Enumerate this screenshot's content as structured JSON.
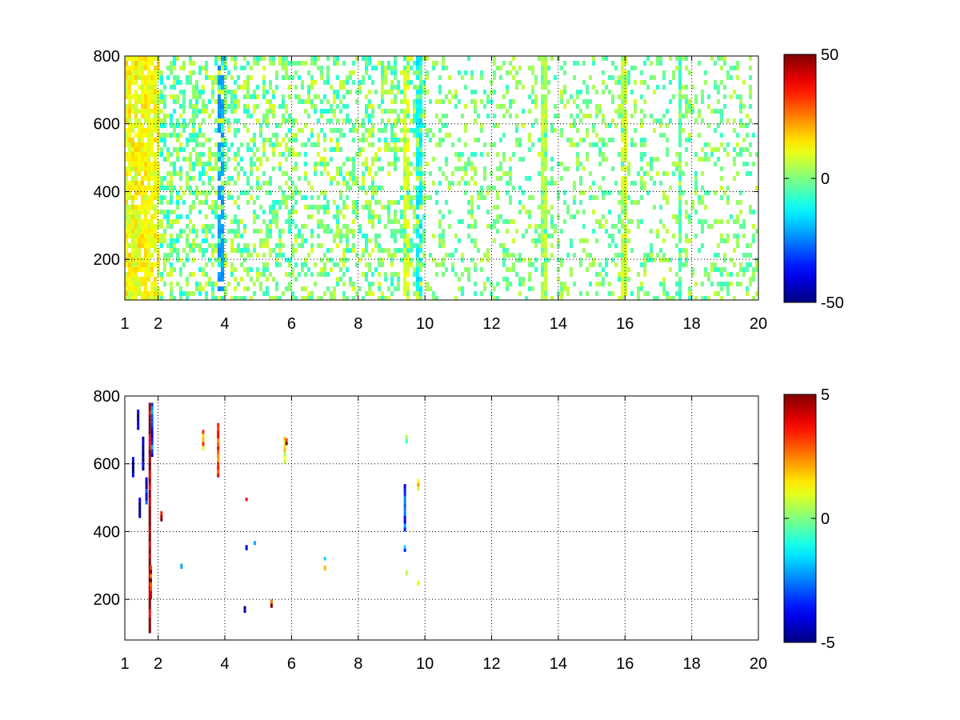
{
  "figure": {
    "background": "#ffffff",
    "colormap": "jet"
  },
  "chart_data": [
    {
      "type": "heatmap",
      "title": "",
      "xlabel": "",
      "ylabel": "",
      "xlim": [
        1,
        20
      ],
      "ylim": [
        80,
        800
      ],
      "xticks": [
        1,
        2,
        4,
        6,
        8,
        10,
        12,
        14,
        16,
        18,
        20
      ],
      "yticks": [
        200,
        400,
        600,
        800
      ],
      "grid": true,
      "colorbar": {
        "range": [
          -50,
          50
        ],
        "ticks": [
          50,
          0,
          -50
        ],
        "tick_labels": [
          "50",
          "0",
          "-50"
        ]
      },
      "cell_density_profile": [
        {
          "x_range": [
            1.0,
            2.0
          ],
          "density": 0.85,
          "value_range": [
            5,
            18
          ]
        },
        {
          "x_range": [
            2.0,
            4.0
          ],
          "density": 0.45,
          "value_range": [
            -12,
            10
          ]
        },
        {
          "x_range": [
            4.0,
            10.0
          ],
          "density": 0.35,
          "value_range": [
            -10,
            10
          ]
        },
        {
          "x_range": [
            10.0,
            20.0
          ],
          "density": 0.22,
          "value_range": [
            -8,
            8
          ]
        }
      ],
      "bright_columns": [
        {
          "x": 1.55,
          "value": 14
        },
        {
          "x": 1.72,
          "value": 12
        },
        {
          "x": 3.8,
          "value": -22
        },
        {
          "x": 9.4,
          "value": 10
        },
        {
          "x": 9.75,
          "value": -14
        },
        {
          "x": 13.5,
          "value": 6
        },
        {
          "x": 15.9,
          "value": 8
        },
        {
          "x": 17.6,
          "value": -6
        }
      ]
    },
    {
      "type": "heatmap",
      "title": "",
      "xlabel": "",
      "ylabel": "",
      "xlim": [
        1,
        20
      ],
      "ylim": [
        80,
        800
      ],
      "xticks": [
        1,
        2,
        4,
        6,
        8,
        10,
        12,
        14,
        16,
        18,
        20
      ],
      "yticks": [
        200,
        400,
        600,
        800
      ],
      "grid": true,
      "colorbar": {
        "range": [
          -5,
          5
        ],
        "ticks": [
          5,
          0,
          -5
        ],
        "tick_labels": [
          "5",
          "0",
          "-5"
        ]
      },
      "sparse_points": [
        {
          "x": 1.25,
          "y_range": [
            560,
            620
          ],
          "value": -5
        },
        {
          "x": 1.4,
          "y_range": [
            700,
            760
          ],
          "value": -5
        },
        {
          "x": 1.45,
          "y_range": [
            440,
            500
          ],
          "value": -4
        },
        {
          "x": 1.55,
          "y_range": [
            580,
            680
          ],
          "value": -5
        },
        {
          "x": 1.65,
          "y_range": [
            480,
            560
          ],
          "value": -4
        },
        {
          "x": 1.75,
          "y_range": [
            100,
            780
          ],
          "value": 5
        },
        {
          "x": 1.78,
          "y_range": [
            200,
            300
          ],
          "value": 4
        },
        {
          "x": 1.82,
          "y_range": [
            620,
            780
          ],
          "value": -3
        },
        {
          "x": 2.1,
          "y_range": [
            430,
            460
          ],
          "value": 4
        },
        {
          "x": 2.7,
          "y_range": [
            290,
            305
          ],
          "value": -2
        },
        {
          "x": 3.35,
          "y_range": [
            640,
            700
          ],
          "value": 2
        },
        {
          "x": 3.8,
          "y_range": [
            560,
            720
          ],
          "value": 3
        },
        {
          "x": 4.6,
          "y_range": [
            160,
            180
          ],
          "value": -4
        },
        {
          "x": 4.65,
          "y_range": [
            345,
            360
          ],
          "value": -5
        },
        {
          "x": 4.65,
          "y_range": [
            490,
            500
          ],
          "value": 3
        },
        {
          "x": 4.9,
          "y_range": [
            360,
            372
          ],
          "value": -1
        },
        {
          "x": 5.4,
          "y_range": [
            175,
            200
          ],
          "value": 4
        },
        {
          "x": 5.8,
          "y_range": [
            600,
            680
          ],
          "value": 1
        },
        {
          "x": 5.85,
          "y_range": [
            655,
            675
          ],
          "value": 4
        },
        {
          "x": 7.0,
          "y_range": [
            285,
            300
          ],
          "value": 2
        },
        {
          "x": 7.0,
          "y_range": [
            315,
            325
          ],
          "value": -1
        },
        {
          "x": 9.4,
          "y_range": [
            400,
            540
          ],
          "value": -3
        },
        {
          "x": 9.4,
          "y_range": [
            340,
            360
          ],
          "value": -2
        },
        {
          "x": 9.45,
          "y_range": [
            660,
            685
          ],
          "value": 0.5
        },
        {
          "x": 9.45,
          "y_range": [
            270,
            285
          ],
          "value": 0.5
        },
        {
          "x": 9.8,
          "y_range": [
            520,
            555
          ],
          "value": 2
        },
        {
          "x": 9.8,
          "y_range": [
            240,
            255
          ],
          "value": 1.5
        }
      ]
    }
  ]
}
